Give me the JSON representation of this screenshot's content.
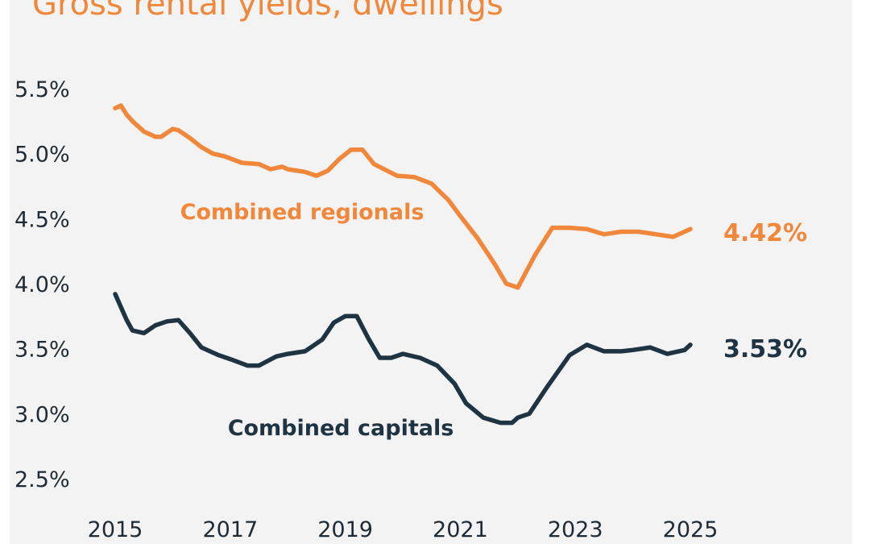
{
  "colors": {
    "regionals": "#f0873a",
    "capitals": "#1e3442",
    "title": "#f0873a",
    "background": "#f3f3f3",
    "axis_text": "#1e2b35"
  },
  "chart_data": {
    "type": "line",
    "title": "Gross rental yields, dwellings",
    "xlabel": "",
    "ylabel": "",
    "ylim": [
      2.5,
      5.5
    ],
    "xlim": [
      2015,
      2025
    ],
    "yticks": [
      "5.5%",
      "5.0%",
      "4.5%",
      "4.0%",
      "3.5%",
      "3.0%",
      "2.5%"
    ],
    "ytick_values": [
      5.5,
      5.0,
      4.5,
      4.0,
      3.5,
      3.0,
      2.5
    ],
    "xticks": [
      "2015",
      "2017",
      "2019",
      "2021",
      "2023",
      "2025"
    ],
    "xtick_values": [
      2015,
      2017,
      2019,
      2021,
      2023,
      2025
    ],
    "grid": false,
    "legend": "none",
    "series": [
      {
        "name": "Combined regionals",
        "end_label": "4.42%",
        "x": [
          2015.0,
          2015.1,
          2015.2,
          2015.3,
          2015.5,
          2015.7,
          2015.8,
          2016.0,
          2016.1,
          2016.3,
          2016.5,
          2016.7,
          2016.9,
          2017.2,
          2017.5,
          2017.7,
          2017.9,
          2018.0,
          2018.3,
          2018.5,
          2018.7,
          2018.9,
          2019.1,
          2019.3,
          2019.5,
          2019.9,
          2020.2,
          2020.5,
          2020.8,
          2021.0,
          2021.3,
          2021.6,
          2021.8,
          2022.0,
          2022.3,
          2022.6,
          2022.9,
          2023.2,
          2023.5,
          2023.8,
          2024.1,
          2024.4,
          2024.7,
          2025.0
        ],
        "values": [
          5.35,
          5.37,
          5.3,
          5.25,
          5.17,
          5.13,
          5.13,
          5.19,
          5.18,
          5.12,
          5.05,
          5.0,
          4.98,
          4.93,
          4.92,
          4.88,
          4.9,
          4.88,
          4.86,
          4.83,
          4.87,
          4.96,
          5.03,
          5.03,
          4.92,
          4.83,
          4.82,
          4.77,
          4.64,
          4.52,
          4.35,
          4.15,
          4.0,
          3.97,
          4.22,
          4.43,
          4.43,
          4.42,
          4.38,
          4.4,
          4.4,
          4.38,
          4.36,
          4.42
        ]
      },
      {
        "name": "Combined capitals",
        "end_label": "3.53%",
        "x": [
          2015.0,
          2015.1,
          2015.2,
          2015.3,
          2015.5,
          2015.7,
          2015.9,
          2016.1,
          2016.3,
          2016.5,
          2016.8,
          2017.0,
          2017.3,
          2017.5,
          2017.8,
          2018.0,
          2018.3,
          2018.6,
          2018.8,
          2019.0,
          2019.2,
          2019.4,
          2019.6,
          2019.8,
          2020.0,
          2020.3,
          2020.6,
          2020.9,
          2021.1,
          2021.4,
          2021.7,
          2021.9,
          2022.0,
          2022.2,
          2022.5,
          2022.9,
          2023.2,
          2023.5,
          2023.8,
          2024.0,
          2024.3,
          2024.6,
          2024.9,
          2025.0
        ],
        "values": [
          3.92,
          3.82,
          3.72,
          3.64,
          3.62,
          3.68,
          3.71,
          3.72,
          3.62,
          3.51,
          3.45,
          3.42,
          3.37,
          3.37,
          3.44,
          3.46,
          3.48,
          3.57,
          3.7,
          3.75,
          3.75,
          3.58,
          3.43,
          3.43,
          3.46,
          3.43,
          3.37,
          3.23,
          3.08,
          2.97,
          2.93,
          2.93,
          2.97,
          3.0,
          3.2,
          3.45,
          3.53,
          3.48,
          3.48,
          3.49,
          3.51,
          3.46,
          3.49,
          3.53
        ]
      }
    ]
  }
}
